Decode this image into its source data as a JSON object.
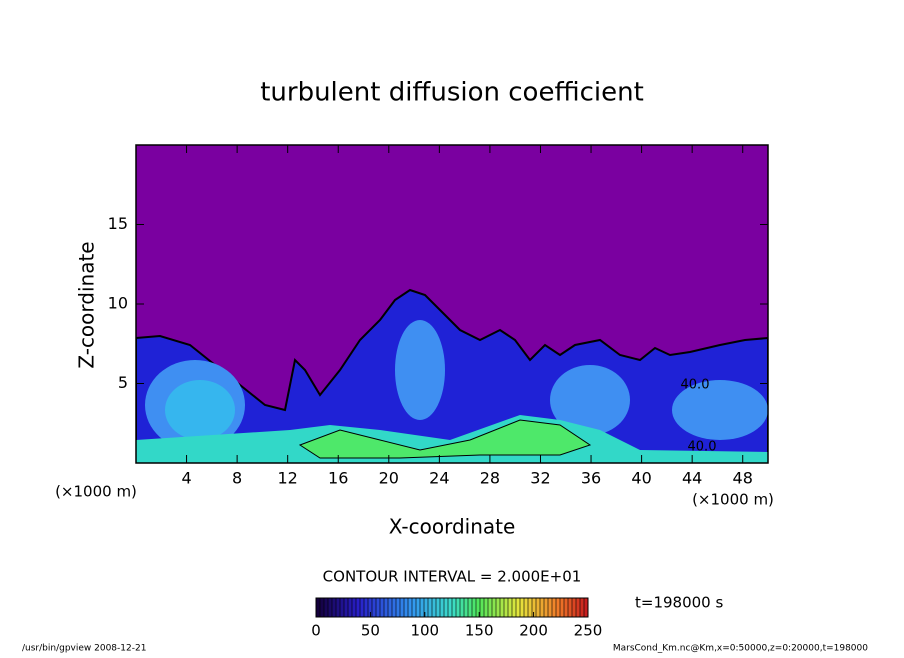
{
  "chart_data": {
    "type": "contour",
    "title": "turbulent diffusion coefficient",
    "x_label": "X-coordinate",
    "y_label": "Z-coordinate",
    "x_unit": "(×1000 m)",
    "y_unit": "(×1000 m)",
    "xlim": [
      0,
      50
    ],
    "ylim": [
      0,
      20
    ],
    "xticks": [
      4,
      8,
      12,
      16,
      20,
      24,
      28,
      32,
      36,
      40,
      44,
      48
    ],
    "yticks": [
      5,
      10,
      15
    ],
    "contour_labels": [
      {
        "value": 40,
        "label": "40.0"
      },
      {
        "value": 40,
        "label": "40.0"
      }
    ],
    "colorbar": {
      "lim": [
        0,
        250
      ],
      "ticks": [
        0,
        50,
        100,
        150,
        200,
        250
      ]
    },
    "contour_interval": "CONTOUR INTERVAL = 2.000E+01",
    "time": "t=198000 s",
    "footer_left": "/usr/bin/gpview  2008-12-21",
    "footer_right": "MarsCond_Km.nc@Km,x=0:50000,z=0:20000,t=198000"
  }
}
